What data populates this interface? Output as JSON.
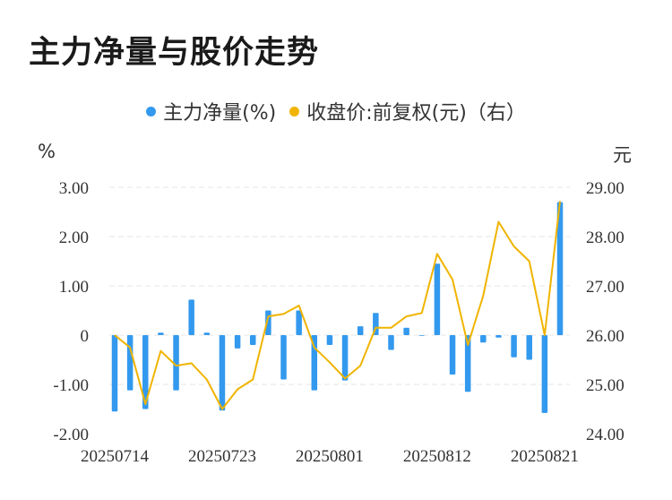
{
  "title": "主力净量与股价走势",
  "legend": {
    "series1": "主力净量(%)",
    "series2": "收盘价:前复权(元)（右）"
  },
  "axes": {
    "left_unit": "%",
    "right_unit": "元"
  },
  "colors": {
    "bar": "#3399ee",
    "line": "#f0b400",
    "grid": "#e6e6e6"
  },
  "chart_data": {
    "type": "bar",
    "left_axis": {
      "unit": "%",
      "ylim": [
        -2,
        3
      ],
      "ticks": [
        "3.00",
        "2.00",
        "1.00",
        "0",
        "-1.00",
        "-2.00"
      ]
    },
    "right_axis": {
      "unit": "元",
      "ylim": [
        24,
        29
      ],
      "ticks": [
        "29.00",
        "28.00",
        "27.00",
        "26.00",
        "25.00",
        "24.00"
      ]
    },
    "x_tick_labels": [
      "20250714",
      "20250723",
      "20250801",
      "20250812",
      "20250821"
    ],
    "x_tick_index": [
      0,
      7,
      14,
      21,
      28
    ],
    "grid": "horizontal dashed",
    "legend_position": "top",
    "series": [
      {
        "name": "主力净量(%)",
        "type": "bar",
        "axis": "left",
        "values": [
          -1.55,
          -1.12,
          -1.5,
          0.05,
          -1.12,
          0.72,
          0.05,
          -1.53,
          -0.27,
          -0.2,
          0.5,
          -0.9,
          0.5,
          -1.12,
          -0.2,
          -0.92,
          0.18,
          0.45,
          -0.3,
          0.15,
          0.0,
          1.45,
          -0.8,
          -1.15,
          -0.15,
          -0.05,
          -0.45,
          -0.5,
          -1.58,
          2.7
        ]
      },
      {
        "name": "收盘价:前复权(元)（右）",
        "type": "line",
        "axis": "right",
        "values": [
          26.0,
          25.75,
          24.6,
          25.68,
          25.38,
          25.43,
          25.1,
          24.5,
          24.9,
          25.1,
          26.38,
          26.43,
          26.6,
          25.75,
          25.45,
          25.12,
          25.38,
          26.15,
          26.15,
          26.38,
          26.45,
          27.65,
          27.13,
          25.8,
          26.8,
          28.3,
          27.8,
          27.5,
          26.0,
          28.72
        ]
      }
    ]
  }
}
